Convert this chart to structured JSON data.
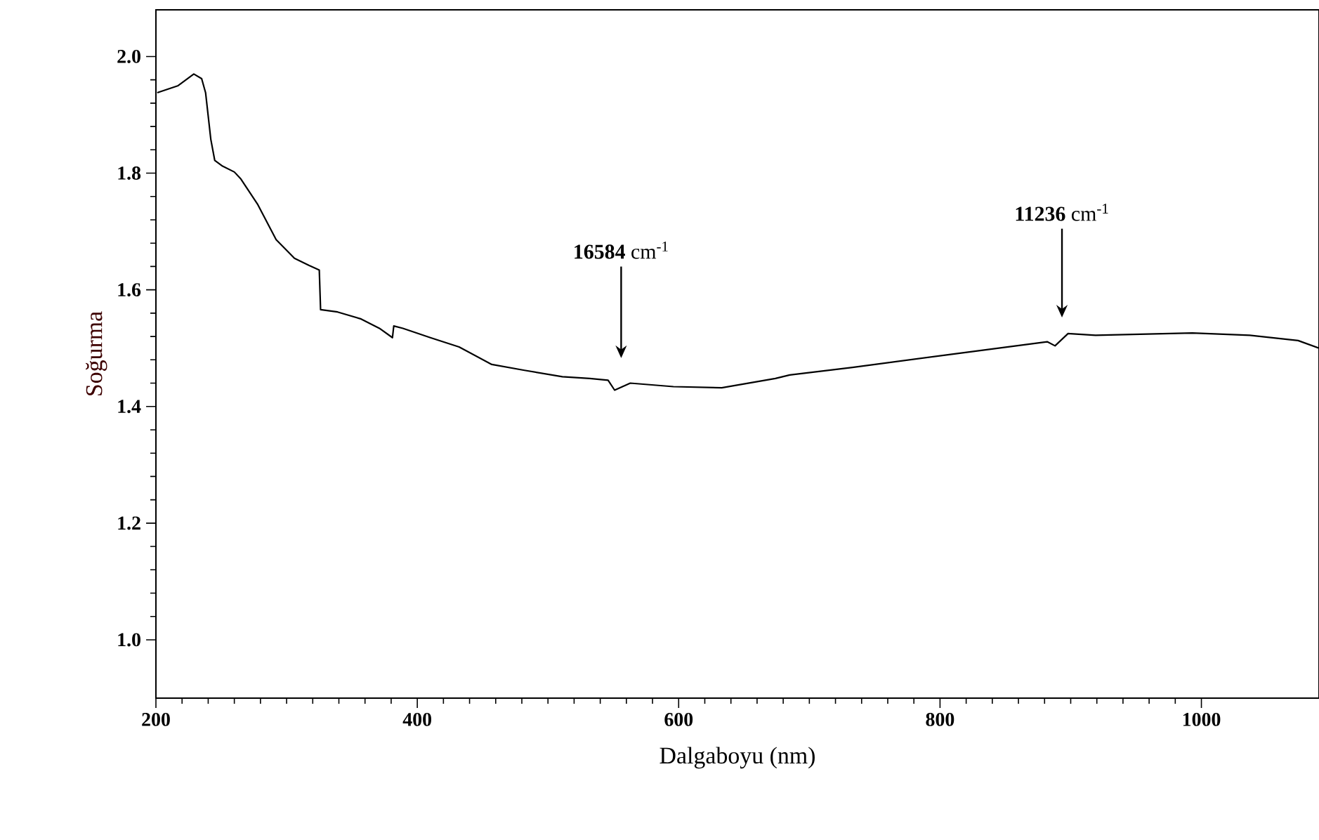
{
  "chart_data": {
    "type": "line",
    "xlabel": "Dalgaboyu (nm)",
    "ylabel": "Soğurma",
    "x": [
      201,
      217,
      229,
      235,
      238,
      242,
      245,
      251,
      260,
      265,
      278,
      292,
      306,
      317,
      325,
      326,
      339,
      357,
      371,
      381,
      382,
      389,
      410,
      432,
      457,
      482,
      511,
      532,
      546,
      551,
      563,
      596,
      633,
      674,
      685,
      733,
      807,
      882,
      888,
      898,
      919,
      993,
      1037,
      1074,
      1090
    ],
    "series": [
      {
        "color": "#000000",
        "values": [
          1.938,
          1.95,
          1.97,
          1.962,
          1.938,
          1.858,
          1.822,
          1.812,
          1.802,
          1.79,
          1.746,
          1.686,
          1.654,
          1.642,
          1.634,
          1.566,
          1.562,
          1.55,
          1.534,
          1.518,
          1.538,
          1.534,
          1.518,
          1.502,
          1.472,
          1.462,
          1.451,
          1.448,
          1.445,
          1.428,
          1.44,
          1.434,
          1.432,
          1.448,
          1.454,
          1.467,
          1.489,
          1.511,
          1.504,
          1.525,
          1.522,
          1.526,
          1.522,
          1.513,
          1.5
        ]
      }
    ],
    "xlim": [
      200,
      1090
    ],
    "ylim": [
      0.9,
      2.08
    ],
    "xticks": [
      200,
      400,
      600,
      800,
      1000
    ],
    "yticks": [
      {
        "value": 1.0,
        "label": "1.0"
      },
      1.2,
      1.4,
      1.6,
      1.8,
      {
        "value": 2.0,
        "label": "2.0"
      }
    ],
    "annotations": [
      "**16584** cm$^{-1}$",
      "**11236** cm$^{-1}$"
    ],
    "marker": "none",
    "line_style": "solid"
  }
}
